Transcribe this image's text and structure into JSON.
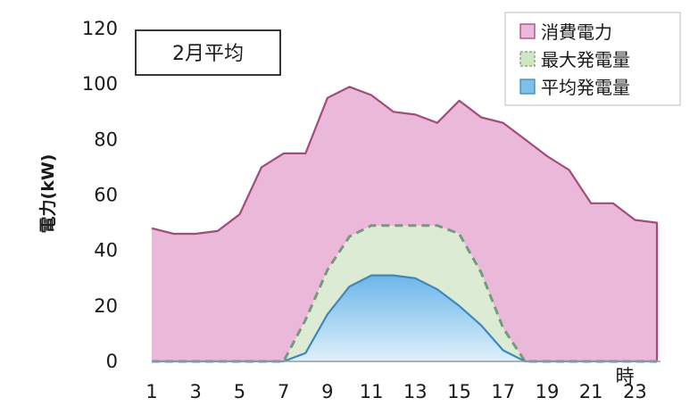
{
  "chart_data": {
    "type": "area",
    "title": "2月平均",
    "ylabel": "電力(kW)",
    "x_unit_label": "時",
    "ylim": [
      0,
      120
    ],
    "yticks": [
      0,
      20,
      40,
      60,
      80,
      100,
      120
    ],
    "xlim": [
      1,
      24
    ],
    "xticks": [
      1,
      3,
      5,
      7,
      9,
      11,
      13,
      15,
      17,
      19,
      21,
      23
    ],
    "legend_position": "top-right",
    "x": [
      1,
      2,
      3,
      4,
      5,
      6,
      7,
      8,
      9,
      10,
      11,
      12,
      13,
      14,
      15,
      16,
      17,
      18,
      19,
      20,
      21,
      22,
      23,
      24
    ],
    "series": [
      {
        "name": "消費電力",
        "color": "#e9b6d8",
        "edge": "#a64a78",
        "style": "solid",
        "values": [
          48,
          46,
          46,
          47,
          53,
          70,
          75,
          75,
          95,
          99,
          96,
          90,
          89,
          86,
          94,
          88,
          86,
          80,
          74,
          69,
          57,
          57,
          51,
          50
        ]
      },
      {
        "name": "最大発電量",
        "color": "#d6ead0",
        "edge": "#6f9e78",
        "style": "dashed",
        "values": [
          0,
          0,
          0,
          0,
          0,
          0,
          0,
          15,
          33,
          45,
          49,
          49,
          49,
          49,
          46,
          32,
          12,
          0,
          0,
          0,
          0,
          0,
          0,
          0
        ]
      },
      {
        "name": "平均発電量",
        "color": "#7fc0ea",
        "edge": "#3c88c4",
        "style": "solid",
        "values": [
          0,
          0,
          0,
          0,
          0,
          0,
          0,
          3,
          17,
          27,
          31,
          31,
          30,
          26,
          20,
          13,
          4,
          0,
          0,
          0,
          0,
          0,
          0,
          0
        ]
      }
    ]
  }
}
